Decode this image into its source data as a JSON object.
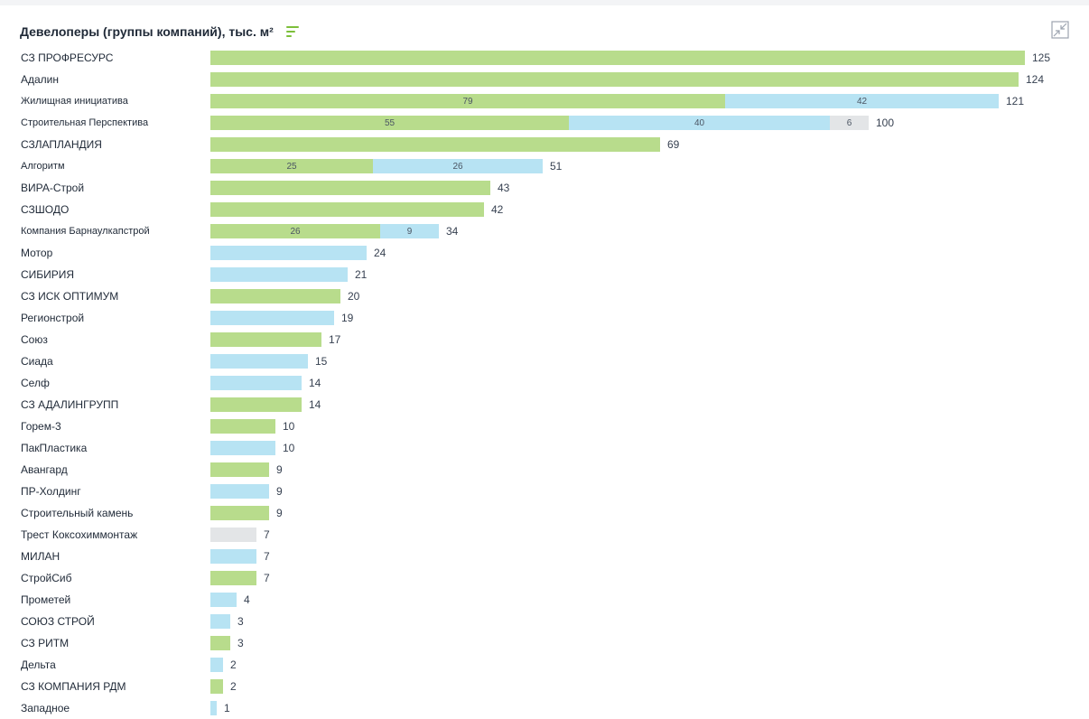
{
  "header": {
    "title": "Девелоперы (группы компаний), тыс. м²",
    "sort_icon": "sort-icon",
    "expand_icon": "collapse-arrows-icon"
  },
  "colors": {
    "s1": "#b8dc8c",
    "s2": "#b7e3f3",
    "s3": "#e3e5e7"
  },
  "chart_data": {
    "type": "bar",
    "orientation": "horizontal",
    "stacked": true,
    "title": "Девелоперы (группы компаний), тыс. м²",
    "xlim": [
      0,
      125
    ],
    "grid": false,
    "categories": [
      {
        "name": "СЗ ПРОФРЕСУРС",
        "segments": [
          {
            "value": 125,
            "color": "s1"
          }
        ],
        "total": 125
      },
      {
        "name": "Адалин",
        "segments": [
          {
            "value": 124,
            "color": "s1"
          }
        ],
        "total": 124
      },
      {
        "name": "Жилищная инициатива",
        "segments": [
          {
            "value": 79,
            "color": "s1",
            "label": "79"
          },
          {
            "value": 42,
            "color": "s2",
            "label": "42"
          }
        ],
        "total": 121
      },
      {
        "name": "Строительная Перспектива",
        "segments": [
          {
            "value": 55,
            "color": "s1",
            "label": "55"
          },
          {
            "value": 40,
            "color": "s2",
            "label": "40"
          },
          {
            "value": 6,
            "color": "s3",
            "label": "6"
          }
        ],
        "total": 100
      },
      {
        "name": "СЗЛАПЛАНДИЯ",
        "segments": [
          {
            "value": 69,
            "color": "s1"
          }
        ],
        "total": 69
      },
      {
        "name": "Алгоритм",
        "segments": [
          {
            "value": 25,
            "color": "s1",
            "label": "25"
          },
          {
            "value": 26,
            "color": "s2",
            "label": "26"
          }
        ],
        "total": 51
      },
      {
        "name": "ВИРА-Строй",
        "segments": [
          {
            "value": 43,
            "color": "s1"
          }
        ],
        "total": 43
      },
      {
        "name": "СЗШОДО",
        "segments": [
          {
            "value": 42,
            "color": "s1"
          }
        ],
        "total": 42
      },
      {
        "name": "Компания Барнаулкапстрой",
        "segments": [
          {
            "value": 26,
            "color": "s1",
            "label": "26"
          },
          {
            "value": 9,
            "color": "s2",
            "label": "9"
          }
        ],
        "total": 34
      },
      {
        "name": "Мотор",
        "segments": [
          {
            "value": 24,
            "color": "s2"
          }
        ],
        "total": 24
      },
      {
        "name": "СИБИРИЯ",
        "segments": [
          {
            "value": 21,
            "color": "s2"
          }
        ],
        "total": 21
      },
      {
        "name": "СЗ ИСК ОПТИМУМ",
        "segments": [
          {
            "value": 20,
            "color": "s1"
          }
        ],
        "total": 20
      },
      {
        "name": "Регионстрой",
        "segments": [
          {
            "value": 19,
            "color": "s2"
          }
        ],
        "total": 19
      },
      {
        "name": "Союз",
        "segments": [
          {
            "value": 17,
            "color": "s1"
          }
        ],
        "total": 17
      },
      {
        "name": "Сиада",
        "segments": [
          {
            "value": 15,
            "color": "s2"
          }
        ],
        "total": 15
      },
      {
        "name": "Селф",
        "segments": [
          {
            "value": 14,
            "color": "s2"
          }
        ],
        "total": 14
      },
      {
        "name": "СЗ АДАЛИНГРУПП",
        "segments": [
          {
            "value": 14,
            "color": "s1"
          }
        ],
        "total": 14
      },
      {
        "name": "Горем-3",
        "segments": [
          {
            "value": 10,
            "color": "s1"
          }
        ],
        "total": 10
      },
      {
        "name": "ПакПластика",
        "segments": [
          {
            "value": 10,
            "color": "s2"
          }
        ],
        "total": 10
      },
      {
        "name": "Авангард",
        "segments": [
          {
            "value": 9,
            "color": "s1"
          }
        ],
        "total": 9
      },
      {
        "name": "ПР-Холдинг",
        "segments": [
          {
            "value": 9,
            "color": "s2"
          }
        ],
        "total": 9
      },
      {
        "name": "Строительный камень",
        "segments": [
          {
            "value": 9,
            "color": "s1"
          }
        ],
        "total": 9
      },
      {
        "name": "Трест Коксохиммонтаж",
        "segments": [
          {
            "value": 7,
            "color": "s3"
          }
        ],
        "total": 7
      },
      {
        "name": "МИЛАН",
        "segments": [
          {
            "value": 7,
            "color": "s2"
          }
        ],
        "total": 7
      },
      {
        "name": "СтройСиб",
        "segments": [
          {
            "value": 7,
            "color": "s1"
          }
        ],
        "total": 7
      },
      {
        "name": "Прометей",
        "segments": [
          {
            "value": 4,
            "color": "s2"
          }
        ],
        "total": 4
      },
      {
        "name": "СОЮЗ СТРОЙ",
        "segments": [
          {
            "value": 3,
            "color": "s2"
          }
        ],
        "total": 3
      },
      {
        "name": "СЗ РИТМ",
        "segments": [
          {
            "value": 3,
            "color": "s1"
          }
        ],
        "total": 3
      },
      {
        "name": "Дельта",
        "segments": [
          {
            "value": 2,
            "color": "s2"
          }
        ],
        "total": 2
      },
      {
        "name": "СЗ КОМПАНИЯ РДМ",
        "segments": [
          {
            "value": 2,
            "color": "s1"
          }
        ],
        "total": 2
      },
      {
        "name": "Западное",
        "segments": [
          {
            "value": 1,
            "color": "s2"
          }
        ],
        "total": 1
      }
    ]
  }
}
